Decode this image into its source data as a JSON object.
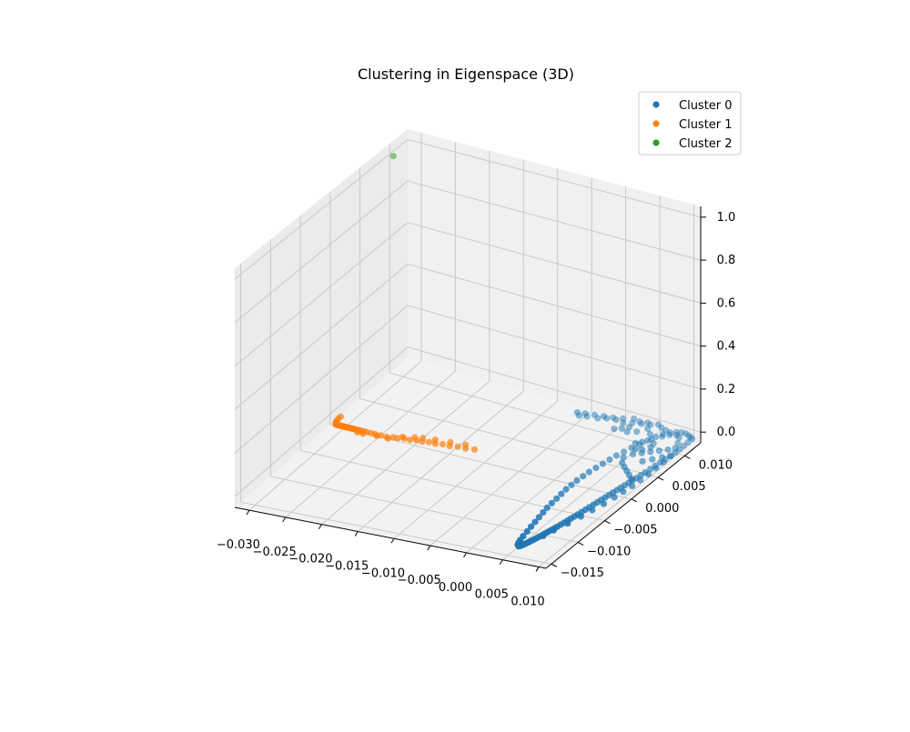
{
  "chart_data": {
    "type": "scatter",
    "projection": "3d",
    "title": "Clustering in Eigenspace (3D)",
    "xlabel": "",
    "ylabel": "",
    "zlabel": "",
    "grid": true,
    "legend_position": "top-right",
    "xlim": [
      -0.032,
      0.011
    ],
    "ylim": [
      -0.016,
      0.013
    ],
    "zlim": [
      -0.05,
      1.05
    ],
    "x_ticks": [
      -0.03,
      -0.025,
      -0.02,
      -0.015,
      -0.01,
      -0.005,
      0.0,
      0.005,
      0.01
    ],
    "x_tick_labels": [
      "−0.030",
      "−0.025",
      "−0.020",
      "−0.015",
      "−0.010",
      "−0.005",
      "0.000",
      "0.005",
      "0.010"
    ],
    "y_ticks": [
      -0.015,
      -0.01,
      -0.005,
      0.0,
      0.005,
      0.01
    ],
    "y_tick_labels": [
      "−0.015",
      "−0.010",
      "−0.005",
      "0.000",
      "0.005",
      "0.010"
    ],
    "z_ticks": [
      0.0,
      0.2,
      0.4,
      0.6,
      0.8,
      1.0
    ],
    "z_tick_labels": [
      "0.0",
      "0.2",
      "0.4",
      "0.6",
      "0.8",
      "1.0"
    ],
    "series": [
      {
        "name": "Cluster 0",
        "color": "#1f77b4",
        "points": [
          [
            0.0065,
            -0.015,
            0
          ],
          [
            0.0066,
            -0.0149,
            0
          ],
          [
            0.0067,
            -0.0147,
            0
          ],
          [
            0.0068,
            -0.0145,
            0
          ],
          [
            0.0069,
            -0.0143,
            0
          ],
          [
            0.007,
            -0.014,
            0
          ],
          [
            0.0071,
            -0.0137,
            0
          ],
          [
            0.0072,
            -0.0134,
            0
          ],
          [
            0.0073,
            -0.0131,
            0
          ],
          [
            0.0074,
            -0.0128,
            0
          ],
          [
            0.0075,
            -0.0124,
            0
          ],
          [
            0.0076,
            -0.012,
            0
          ],
          [
            0.0077,
            -0.0116,
            0
          ],
          [
            0.0078,
            -0.0112,
            0
          ],
          [
            0.0079,
            -0.0108,
            0
          ],
          [
            0.008,
            -0.0104,
            0
          ],
          [
            0.0081,
            -0.01,
            0
          ],
          [
            0.0082,
            -0.0095,
            0
          ],
          [
            0.0083,
            -0.009,
            0
          ],
          [
            0.0084,
            -0.0085,
            0
          ],
          [
            0.0085,
            -0.008,
            0
          ],
          [
            0.0086,
            -0.0075,
            0
          ],
          [
            0.0087,
            -0.007,
            0
          ],
          [
            0.0088,
            -0.0064,
            0
          ],
          [
            0.0089,
            -0.0058,
            0
          ],
          [
            0.009,
            -0.0052,
            0
          ],
          [
            0.0091,
            -0.0046,
            0
          ],
          [
            0.0092,
            -0.004,
            0
          ],
          [
            0.0093,
            -0.0034,
            0
          ],
          [
            0.0094,
            -0.0028,
            0
          ],
          [
            0.0095,
            -0.0022,
            0
          ],
          [
            0.0096,
            -0.0016,
            0
          ],
          [
            0.0097,
            -0.001,
            0
          ],
          [
            0.0098,
            -0.0004,
            0
          ],
          [
            0.0099,
            0.0002,
            0
          ],
          [
            0.01,
            0.0008,
            0
          ],
          [
            0.0101,
            0.0014,
            0
          ],
          [
            0.0102,
            0.002,
            0
          ],
          [
            0.0103,
            0.0027,
            0
          ],
          [
            0.0104,
            0.0034,
            0
          ],
          [
            0.0105,
            0.0042,
            0
          ],
          [
            0.0106,
            0.005,
            0
          ],
          [
            0.0107,
            0.0058,
            0
          ],
          [
            0.0108,
            0.0066,
            0
          ],
          [
            0.0109,
            0.0074,
            0
          ],
          [
            0.011,
            0.0082,
            0
          ],
          [
            0.011,
            0.009,
            0
          ],
          [
            0.011,
            0.0098,
            0
          ],
          [
            0.011,
            0.0106,
            0
          ],
          [
            0.011,
            0.0114,
            0
          ],
          [
            0.0062,
            -0.0148,
            0
          ],
          [
            0.006,
            -0.0144,
            0
          ],
          [
            0.0058,
            -0.0138,
            0
          ],
          [
            0.0056,
            -0.013,
            0
          ],
          [
            0.0054,
            -0.012,
            0
          ],
          [
            0.0052,
            -0.011,
            0
          ],
          [
            0.005,
            -0.01,
            0
          ],
          [
            0.0048,
            -0.009,
            0
          ],
          [
            0.0046,
            -0.008,
            0
          ],
          [
            0.0044,
            -0.007,
            0
          ],
          [
            0.0043,
            -0.006,
            0
          ],
          [
            0.0042,
            -0.005,
            0
          ],
          [
            0.0041,
            -0.004,
            0
          ],
          [
            0.004,
            -0.003,
            0
          ],
          [
            0.004,
            -0.002,
            0
          ],
          [
            0.004,
            -0.001,
            0
          ],
          [
            0.0041,
            0.0,
            0
          ],
          [
            0.0042,
            0.001,
            0
          ],
          [
            0.0044,
            0.002,
            0
          ],
          [
            0.0046,
            0.003,
            0
          ],
          [
            0.0048,
            0.004,
            0
          ],
          [
            0.005,
            0.005,
            0
          ],
          [
            0.0053,
            0.006,
            0
          ],
          [
            0.0056,
            0.007,
            0
          ],
          [
            0.006,
            0.008,
            0
          ],
          [
            0.0064,
            0.009,
            0
          ],
          [
            0.0068,
            0.01,
            0
          ],
          [
            0.0072,
            0.0108,
            0
          ],
          [
            0.0078,
            0.0114,
            0
          ],
          [
            0.0084,
            0.0118,
            0
          ],
          [
            0.009,
            0.012,
            0
          ],
          [
            0.0096,
            0.012,
            0
          ],
          [
            0.0102,
            0.0118,
            0
          ],
          [
            0.0106,
            0.0116,
            0
          ],
          [
            0.0078,
            -0.0122,
            0
          ],
          [
            0.0082,
            -0.0108,
            0
          ],
          [
            0.0088,
            -0.009,
            0
          ],
          [
            0.0093,
            -0.0072,
            0
          ],
          [
            0.0097,
            -0.0056,
            0
          ],
          [
            0.0101,
            -0.004,
            0
          ],
          [
            0.0104,
            -0.0024,
            0
          ],
          [
            0.0106,
            -0.001,
            0
          ],
          [
            0.0108,
            0.0004,
            0
          ],
          [
            0.0109,
            0.0018,
            0
          ],
          [
            0.011,
            0.0032,
            0
          ],
          [
            0.011,
            0.0046,
            0
          ],
          [
            0.011,
            0.006,
            0
          ],
          [
            0.011,
            0.0074,
            0
          ],
          [
            0.01,
            0.01,
            0
          ],
          [
            0.0094,
            0.011,
            0
          ],
          [
            0.0088,
            0.0113,
            0
          ],
          [
            0.008,
            0.011,
            0
          ],
          [
            0.0074,
            0.0104,
            0
          ],
          [
            0.0104,
            0.009,
            0
          ],
          [
            0.0098,
            0.0084,
            0
          ],
          [
            0.009,
            0.0078,
            0
          ],
          [
            0.0082,
            0.0072,
            0
          ],
          [
            0.0074,
            0.0066,
            0
          ],
          [
            0.0066,
            0.006,
            0
          ],
          [
            0.006,
            0.005,
            0
          ],
          [
            0.0066,
            0.004,
            0
          ],
          [
            0.0074,
            0.0034,
            0
          ],
          [
            0.0082,
            0.0028,
            0
          ],
          [
            0.009,
            0.0022,
            0
          ],
          [
            0.0098,
            0.0016,
            0
          ],
          [
            0.0086,
            0.0052,
            0
          ],
          [
            0.0094,
            0.006,
            0
          ],
          [
            0.0102,
            0.0068,
            0
          ],
          [
            0.007,
            0.0116,
            0
          ],
          [
            0.0062,
            0.0118,
            0
          ],
          [
            0.0054,
            0.0122,
            0
          ],
          [
            0.0046,
            0.0118,
            0
          ],
          [
            0.004,
            0.012,
            0
          ],
          [
            0.0048,
            0.011,
            0
          ],
          [
            0.0058,
            0.0102,
            0
          ],
          [
            0.0066,
            0.0094,
            0
          ],
          [
            0.0074,
            0.0088,
            0
          ],
          [
            0.007,
            0.0072,
            0
          ],
          [
            0.0062,
            0.007,
            0
          ],
          [
            0.0054,
            0.008,
            0
          ],
          [
            0.006,
            0.0085,
            0
          ],
          [
            0.0076,
            0.008,
            0
          ],
          [
            0.0035,
            0.0115,
            0
          ],
          [
            0.003,
            0.0118,
            0
          ],
          [
            0.0024,
            0.0112,
            0
          ],
          [
            0.002,
            0.012,
            0
          ],
          [
            0.0014,
            0.0108,
            0
          ],
          [
            0.0008,
            0.0115,
            0
          ],
          [
            0.0002,
            0.011,
            0
          ],
          [
            -0.0004,
            0.0112,
            0
          ],
          [
            -0.001,
            0.0108,
            0
          ],
          [
            -0.0016,
            0.011,
            0
          ],
          [
            -0.002,
            0.0104,
            0
          ],
          [
            -0.0028,
            0.0108,
            0
          ],
          [
            -0.0034,
            0.0102,
            0
          ],
          [
            -0.004,
            0.0106,
            0
          ],
          [
            -0.0044,
            0.01,
            0
          ],
          [
            -0.005,
            0.0104,
            0
          ],
          [
            0.004,
            0.01,
            0
          ],
          [
            0.003,
            0.0095,
            0
          ],
          [
            0.002,
            0.0098,
            0
          ],
          [
            0.0012,
            0.0094,
            0
          ],
          [
            0.0026,
            0.0104,
            0
          ]
        ]
      },
      {
        "name": "Cluster 1",
        "color": "#ff7f0e",
        "points": [
          [
            -0.0305,
            0.0,
            0
          ],
          [
            -0.0305,
            -0.0004,
            0
          ],
          [
            -0.0304,
            -0.0008,
            0
          ],
          [
            -0.0303,
            -0.001,
            0
          ],
          [
            -0.0302,
            -0.0012,
            0
          ],
          [
            -0.0301,
            -0.0013,
            0
          ],
          [
            -0.03,
            -0.0014,
            0
          ],
          [
            -0.0299,
            -0.0014,
            0
          ],
          [
            -0.0298,
            -0.0014,
            0
          ],
          [
            -0.0297,
            -0.0014,
            0
          ],
          [
            -0.0296,
            -0.0014,
            0
          ],
          [
            -0.0295,
            -0.0014,
            0
          ],
          [
            -0.0294,
            -0.0014,
            0
          ],
          [
            -0.0293,
            -0.0014,
            0
          ],
          [
            -0.0292,
            -0.0014,
            0
          ],
          [
            -0.0291,
            -0.0014,
            0
          ],
          [
            -0.029,
            -0.0014,
            0
          ],
          [
            -0.0289,
            -0.0014,
            0
          ],
          [
            -0.0288,
            -0.0014,
            0
          ],
          [
            -0.0287,
            -0.0014,
            0
          ],
          [
            -0.0286,
            -0.0014,
            0
          ],
          [
            -0.0284,
            -0.0014,
            0
          ],
          [
            -0.0282,
            -0.0014,
            0
          ],
          [
            -0.028,
            -0.0014,
            0
          ],
          [
            -0.0278,
            -0.0014,
            0
          ],
          [
            -0.0276,
            -0.0014,
            0
          ],
          [
            -0.0274,
            -0.0014,
            0
          ],
          [
            -0.0272,
            -0.0014,
            0
          ],
          [
            -0.027,
            -0.0014,
            0
          ],
          [
            -0.0267,
            -0.0014,
            0
          ],
          [
            -0.0264,
            -0.0014,
            0
          ],
          [
            -0.026,
            -0.0014,
            0
          ],
          [
            -0.0256,
            -0.0014,
            0
          ],
          [
            -0.025,
            -0.0014,
            0
          ],
          [
            -0.0244,
            -0.0014,
            0
          ],
          [
            -0.0236,
            -0.0014,
            0
          ],
          [
            -0.0228,
            -0.0014,
            0
          ],
          [
            -0.022,
            -0.0012,
            0
          ],
          [
            -0.0214,
            -0.0012,
            0
          ],
          [
            -0.0206,
            -0.001,
            0
          ],
          [
            -0.0198,
            -0.001,
            0
          ],
          [
            -0.019,
            -0.0008,
            0
          ],
          [
            -0.0182,
            -0.0008,
            0
          ],
          [
            -0.0174,
            -0.0006,
            0
          ],
          [
            -0.0165,
            -0.0006,
            0
          ],
          [
            -0.0156,
            -0.0004,
            0
          ],
          [
            -0.0146,
            -0.0004,
            0
          ],
          [
            -0.0136,
            -0.0002,
            0
          ],
          [
            -0.0125,
            -0.0002,
            0
          ],
          [
            -0.0114,
            0.0,
            0
          ],
          [
            -0.0266,
            -0.0018,
            0
          ],
          [
            -0.0258,
            -0.0018,
            0
          ],
          [
            -0.024,
            -0.0016,
            0
          ],
          [
            -0.0224,
            -0.0016,
            0
          ],
          [
            -0.021,
            -0.0008,
            0
          ],
          [
            -0.0196,
            -0.0004,
            0
          ],
          [
            -0.0186,
            -0.0002,
            0
          ],
          [
            -0.017,
            0.0,
            0
          ],
          [
            -0.015,
            0.0002,
            0
          ],
          [
            -0.013,
            0.0004,
            0
          ]
        ]
      },
      {
        "name": "Cluster 2",
        "color": "#2ca02c",
        "points": [
          [
            -0.0313,
            0.0098,
            1.0
          ]
        ]
      }
    ]
  }
}
